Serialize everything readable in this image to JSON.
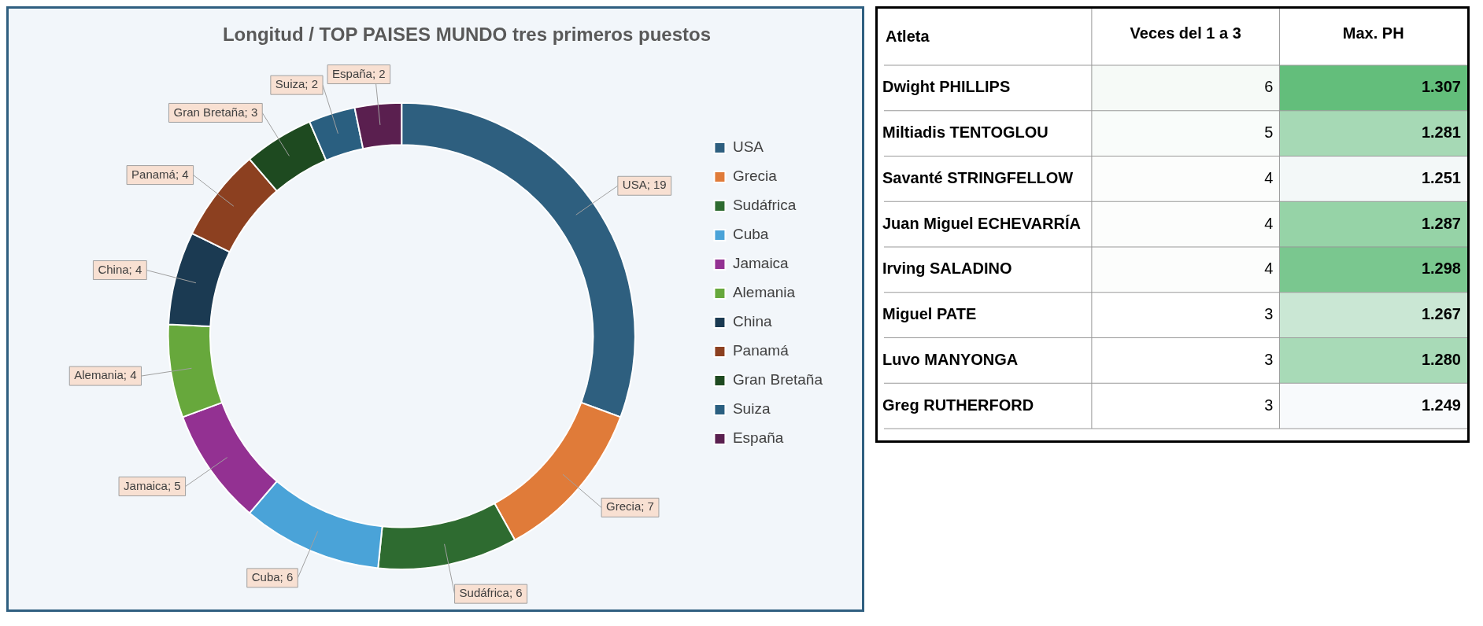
{
  "chart_data": [
    {
      "type": "donut",
      "title": "Longitud / TOP PAISES MUNDO tres primeros puestos",
      "categories": [
        "USA",
        "Grecia",
        "Sudáfrica",
        "Cuba",
        "Jamaica",
        "Alemania",
        "China",
        "Panamá",
        "Gran Bretaña",
        "Suiza",
        "España"
      ],
      "values": [
        19,
        7,
        6,
        6,
        5,
        4,
        4,
        4,
        3,
        2,
        2
      ],
      "colors": [
        "#2e5f7f",
        "#e07b39",
        "#2e6b30",
        "#4aa3d8",
        "#933192",
        "#67a83c",
        "#1b3a52",
        "#8c4020",
        "#1e4a20",
        "#2a5f80",
        "#5a1f4f"
      ],
      "value_labels": [
        "USA; 19",
        "Grecia; 7",
        "Sudáfrica; 6",
        "Cuba; 6",
        "Jamaica; 5",
        "Alemania; 4",
        "China; 4",
        "Panamá; 4",
        "Gran Bretaña; 3",
        "Suiza; 2",
        "España; 2"
      ],
      "legend": "right"
    },
    {
      "type": "heatmap",
      "ylabel": "Atleta",
      "categories": [
        "Veces del 1 a 3",
        "Max. PH"
      ],
      "y_categories": [
        "Dwight PHILLIPS",
        "Miltiadis TENTOGLOU",
        "Savanté STRINGFELLOW",
        "Juan Miguel ECHEVARRÍA",
        "Irving SALADINO",
        "Miguel PATE",
        "Luvo MANYONGA",
        "Greg RUTHERFORD"
      ],
      "cells": [
        [
          6,
          1.307
        ],
        [
          5,
          1.281
        ],
        [
          4,
          1.251
        ],
        [
          4,
          1.287
        ],
        [
          4,
          1.298
        ],
        [
          3,
          1.267
        ],
        [
          3,
          1.28
        ],
        [
          3,
          1.249
        ]
      ],
      "cell_labels": [
        [
          "6",
          "1.307"
        ],
        [
          "5",
          "1.281"
        ],
        [
          "4",
          "1.251"
        ],
        [
          "4",
          "1.287"
        ],
        [
          "4",
          "1.298"
        ],
        [
          "3",
          "1.267"
        ],
        [
          "3",
          "1.280"
        ],
        [
          "3",
          "1.249"
        ]
      ],
      "data_labels": true
    }
  ]
}
